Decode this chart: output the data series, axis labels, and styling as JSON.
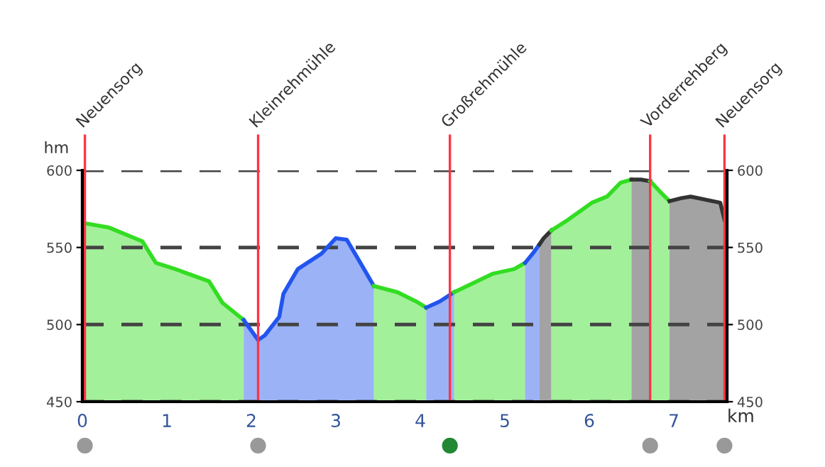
{
  "chart_data": {
    "type": "area",
    "xlabel": "km",
    "ylabel": "hm",
    "xlim": [
      0,
      7.63
    ],
    "xticks": [
      0,
      1,
      2,
      3,
      4,
      5,
      6,
      7
    ],
    "ylim": [
      450,
      600
    ],
    "yticks": [
      450,
      500,
      550,
      600
    ],
    "y2lim": [
      450,
      600
    ],
    "y2ticks": [
      450,
      500,
      550,
      600
    ],
    "grid": "y",
    "legend": false,
    "series": [
      {
        "color": "#33dd22",
        "x": [
          0,
          0.31,
          0.71,
          0.87,
          1.1,
          1.5,
          1.66,
          1.91
        ],
        "values": [
          566,
          563,
          554,
          540,
          536,
          528,
          514,
          503
        ]
      },
      {
        "color": "#2255ee",
        "x": [
          1.91,
          2.08,
          2.16,
          2.33,
          2.38,
          2.55,
          2.83,
          3.0,
          3.13,
          3.27,
          3.45
        ],
        "values": [
          503,
          490,
          493,
          505,
          520,
          536,
          546,
          556,
          555,
          542,
          525
        ]
      },
      {
        "color": "#33dd22",
        "x": [
          3.45,
          3.73,
          3.95,
          4.07
        ],
        "values": [
          525,
          521,
          515,
          511
        ]
      },
      {
        "color": "#2255ee",
        "x": [
          4.07,
          4.23,
          4.4
        ],
        "values": [
          511,
          515,
          521
        ]
      },
      {
        "color": "#33dd22",
        "x": [
          4.4,
          4.86,
          5.11,
          5.24
        ],
        "values": [
          521,
          533,
          536,
          540
        ]
      },
      {
        "color": "#2255ee",
        "x": [
          5.24,
          5.33,
          5.41
        ],
        "values": [
          540,
          546,
          552
        ]
      },
      {
        "color": "#333333",
        "x": [
          5.41,
          5.46,
          5.55
        ],
        "values": [
          552,
          556,
          561
        ]
      },
      {
        "color": "#33dd22",
        "x": [
          5.55,
          5.75,
          6.03,
          6.21,
          6.37,
          6.5
        ],
        "values": [
          561,
          568,
          579,
          583,
          592,
          594
        ]
      },
      {
        "color": "#333333",
        "x": [
          6.5,
          6.61,
          6.72
        ],
        "values": [
          594,
          594,
          593
        ]
      },
      {
        "color": "#33dd22",
        "x": [
          6.72,
          6.84,
          6.95
        ],
        "values": [
          593,
          586,
          580
        ]
      },
      {
        "color": "#333333",
        "x": [
          6.95,
          7.09,
          7.2,
          7.55,
          7.6
        ],
        "values": [
          580,
          582,
          583,
          579,
          568
        ]
      }
    ],
    "ref_lines": [
      {
        "axis": "x",
        "value": 0.03,
        "label": "Neuensorg",
        "color": "#ff3344"
      },
      {
        "axis": "x",
        "value": 2.08,
        "label": "Kleinrehmühle",
        "color": "#ff3344"
      },
      {
        "axis": "x",
        "value": 4.35,
        "label": "Großrehmühle",
        "color": "#ff3344"
      },
      {
        "axis": "x",
        "value": 6.72,
        "label": "Vorderrehberg",
        "color": "#ff3344"
      },
      {
        "axis": "x",
        "value": 7.6,
        "label": "Neuensorg",
        "color": "#ff3344"
      }
    ]
  }
}
